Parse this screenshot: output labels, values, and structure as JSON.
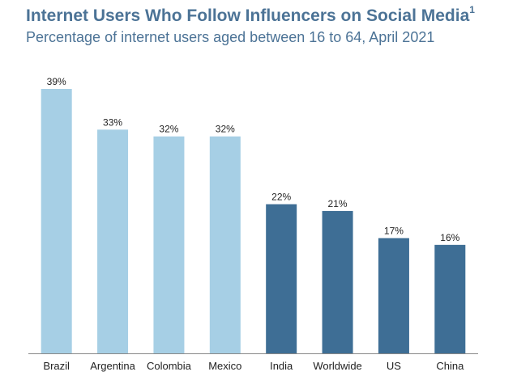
{
  "header": {
    "title": "Internet Users Who Follow Influencers on Social Media",
    "title_superscript": "1",
    "subtitle": "Percentage of internet users aged between 16 to 64, April 2021"
  },
  "colors": {
    "light_bar": "#a6cfe5",
    "dark_bar": "#3e6e95",
    "title": "#4c7396",
    "axis": "#888888"
  },
  "chart_data": {
    "type": "bar",
    "title": "Internet Users Who Follow Influencers on Social Media",
    "subtitle": "Percentage of internet users aged between 16 to 64, April 2021",
    "xlabel": "",
    "ylabel": "",
    "categories": [
      "Brazil",
      "Argentina",
      "Colombia",
      "Mexico",
      "India",
      "Worldwide",
      "US",
      "China"
    ],
    "values": [
      39,
      33,
      32,
      32,
      22,
      21,
      17,
      16
    ],
    "data_labels": [
      "39%",
      "33%",
      "32%",
      "32%",
      "22%",
      "21%",
      "17%",
      "16%"
    ],
    "bar_colors": [
      "#a6cfe5",
      "#a6cfe5",
      "#a6cfe5",
      "#a6cfe5",
      "#3e6e95",
      "#3e6e95",
      "#3e6e95",
      "#3e6e95"
    ],
    "ylim": [
      0,
      39
    ],
    "grid": false,
    "legend": "none"
  }
}
